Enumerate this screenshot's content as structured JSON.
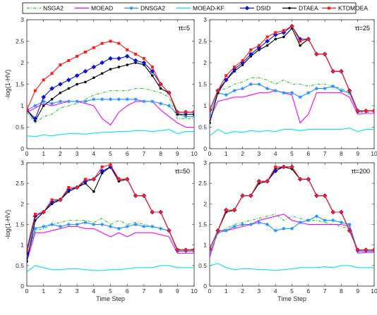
{
  "legend": [
    {
      "name": "NSGA2",
      "color": "#22cc22",
      "dash": "4,2,1,2",
      "marker": "none"
    },
    {
      "name": "MOEAD",
      "color": "#ff00ff",
      "dash": "",
      "marker": "none"
    },
    {
      "name": "DNSGA2",
      "color": "#1e90ff",
      "dash": "",
      "marker": "star"
    },
    {
      "name": "MOEAD-KF",
      "color": "#00e5ee",
      "dash": "",
      "marker": "none"
    },
    {
      "name": "DSID",
      "color": "#0a14d8",
      "dash": "",
      "marker": "diamond"
    },
    {
      "name": "DTAEA",
      "color": "#000000",
      "dash": "",
      "marker": "dot"
    },
    {
      "name": "KTDMOEA",
      "color": "#ff1a1a",
      "dash": "",
      "marker": "square"
    }
  ],
  "chart_data": [
    {
      "type": "line",
      "annotation": "τt=5",
      "xlabel": "",
      "ylabel": "-log(1-HV)",
      "xlim": [
        0,
        10
      ],
      "ylim": [
        0,
        3
      ],
      "xticks": [
        "0",
        "1",
        "2",
        "3",
        "4",
        "5",
        "6",
        "7",
        "8",
        "9",
        "10"
      ],
      "yticks": [
        "0",
        "0.5",
        "1",
        "1.5",
        "2",
        "2.5",
        "3"
      ],
      "x": [
        0,
        0.5,
        1,
        1.5,
        2,
        2.5,
        3,
        3.5,
        4,
        4.5,
        5,
        5.5,
        6,
        6.5,
        7,
        7.5,
        8,
        8.5,
        9,
        9.5,
        10
      ],
      "series": [
        {
          "name": "NSGA2",
          "values": [
            0.85,
            0.6,
            0.75,
            0.8,
            0.95,
            1.0,
            1.05,
            1.15,
            1.25,
            1.3,
            1.35,
            1.35,
            1.35,
            1.4,
            1.4,
            1.35,
            1.3,
            1.2,
            0.7,
            0.7,
            0.7
          ]
        },
        {
          "name": "MOEAD",
          "values": [
            0.85,
            0.95,
            1.05,
            1.0,
            1.05,
            1.1,
            1.1,
            1.05,
            1.0,
            0.7,
            0.55,
            0.85,
            1.0,
            1.1,
            1.1,
            1.1,
            0.9,
            0.75,
            0.6,
            0.5,
            0.5
          ]
        },
        {
          "name": "DNSGA2",
          "values": [
            0.9,
            1.0,
            1.1,
            1.05,
            1.1,
            1.1,
            1.1,
            1.1,
            1.15,
            1.15,
            1.15,
            1.15,
            1.15,
            1.15,
            1.1,
            1.1,
            1.05,
            1.0,
            0.8,
            0.75,
            0.75
          ]
        },
        {
          "name": "MOEAD-KF",
          "values": [
            0.3,
            0.28,
            0.32,
            0.3,
            0.33,
            0.35,
            0.35,
            0.34,
            0.36,
            0.38,
            0.38,
            0.4,
            0.4,
            0.42,
            0.42,
            0.4,
            0.42,
            0.45,
            0.35,
            0.4,
            0.4
          ]
        },
        {
          "name": "DSID",
          "values": [
            0.9,
            0.7,
            1.2,
            1.4,
            1.5,
            1.6,
            1.7,
            1.8,
            1.9,
            2.0,
            2.1,
            2.1,
            2.15,
            2.05,
            2.0,
            1.8,
            1.5,
            1.3,
            0.85,
            0.85,
            0.85
          ]
        },
        {
          "name": "DTAEA",
          "values": [
            0.9,
            0.65,
            1.0,
            1.15,
            1.3,
            1.4,
            1.5,
            1.55,
            1.65,
            1.75,
            1.85,
            1.9,
            1.95,
            2.0,
            1.95,
            1.7,
            1.4,
            1.3,
            0.8,
            0.8,
            0.8
          ]
        },
        {
          "name": "KTDMOEA",
          "values": [
            0.9,
            1.35,
            1.6,
            1.75,
            1.95,
            2.05,
            2.15,
            2.25,
            2.35,
            2.45,
            2.5,
            2.45,
            2.3,
            2.2,
            2.1,
            1.9,
            1.5,
            1.3,
            0.85,
            0.85,
            0.85
          ]
        }
      ]
    },
    {
      "type": "line",
      "annotation": "τt=25",
      "xlabel": "",
      "ylabel": "",
      "xlim": [
        0,
        10
      ],
      "ylim": [
        0,
        3
      ],
      "xticks": [
        "0",
        "1",
        "2",
        "3",
        "4",
        "5",
        "6",
        "7",
        "8",
        "9",
        "10"
      ],
      "yticks": [
        "0",
        "0.5",
        "1",
        "1.5",
        "2",
        "2.5",
        "3"
      ],
      "x": [
        0,
        0.5,
        1,
        1.5,
        2,
        2.5,
        3,
        3.5,
        4,
        4.5,
        5,
        5.5,
        6,
        6.5,
        7,
        7.5,
        8,
        8.5,
        9,
        9.5,
        10
      ],
      "series": [
        {
          "name": "NSGA2",
          "values": [
            0.75,
            1.35,
            1.4,
            1.5,
            1.55,
            1.65,
            1.65,
            1.6,
            1.5,
            1.6,
            1.5,
            1.5,
            1.45,
            1.5,
            1.5,
            1.45,
            1.4,
            1.3,
            0.85,
            0.85,
            0.85
          ]
        },
        {
          "name": "MOEAD",
          "values": [
            0.7,
            1.1,
            1.15,
            1.2,
            1.2,
            1.25,
            1.3,
            1.3,
            1.35,
            1.3,
            1.25,
            0.6,
            0.8,
            1.3,
            1.3,
            1.3,
            1.3,
            1.2,
            0.8,
            0.82,
            0.82
          ]
        },
        {
          "name": "DNSGA2",
          "values": [
            0.8,
            1.3,
            1.25,
            1.35,
            1.4,
            1.5,
            1.5,
            1.4,
            1.35,
            1.3,
            1.3,
            1.2,
            1.3,
            1.4,
            1.4,
            1.45,
            1.35,
            1.3,
            0.85,
            0.88,
            0.88
          ]
        },
        {
          "name": "MOEAD-KF",
          "values": [
            0.3,
            0.45,
            0.35,
            0.4,
            0.38,
            0.42,
            0.4,
            0.42,
            0.4,
            0.45,
            0.45,
            0.42,
            0.45,
            0.45,
            0.45,
            0.45,
            0.45,
            0.48,
            0.4,
            0.45,
            0.45
          ]
        },
        {
          "name": "DSID",
          "values": [
            0.9,
            1.35,
            1.6,
            1.85,
            2.0,
            2.2,
            2.35,
            2.5,
            2.65,
            2.7,
            2.85,
            2.55,
            2.55,
            2.2,
            2.2,
            1.8,
            1.8,
            1.35,
            0.88,
            0.88,
            0.88
          ]
        },
        {
          "name": "DTAEA",
          "values": [
            0.6,
            1.3,
            1.6,
            1.8,
            1.95,
            2.15,
            2.3,
            2.4,
            2.55,
            2.6,
            2.8,
            2.4,
            2.55,
            2.2,
            2.2,
            1.8,
            1.8,
            1.35,
            0.88,
            0.88,
            0.88
          ]
        },
        {
          "name": "KTDMOEA",
          "values": [
            0.9,
            1.35,
            1.7,
            1.9,
            2.05,
            2.3,
            2.4,
            2.6,
            2.7,
            2.75,
            2.85,
            2.5,
            2.55,
            2.2,
            2.2,
            1.8,
            1.8,
            1.35,
            0.88,
            0.88,
            0.88
          ]
        }
      ]
    },
    {
      "type": "line",
      "annotation": "τt=50",
      "xlabel": "Time Step",
      "ylabel": "-log(1-HV)",
      "xlim": [
        0,
        10
      ],
      "ylim": [
        0,
        3
      ],
      "xticks": [
        "0",
        "1",
        "2",
        "3",
        "4",
        "5",
        "6",
        "7",
        "8",
        "9",
        "10"
      ],
      "yticks": [
        "0",
        "0.5",
        "1",
        "1.5",
        "2",
        "2.5",
        "3"
      ],
      "x": [
        0,
        0.5,
        1,
        1.5,
        2,
        2.5,
        3,
        3.5,
        4,
        4.5,
        5,
        5.5,
        6,
        6.5,
        7,
        7.5,
        8,
        8.5,
        9,
        9.5,
        10
      ],
      "series": [
        {
          "name": "NSGA2",
          "values": [
            0.7,
            1.35,
            1.4,
            1.5,
            1.55,
            1.6,
            1.6,
            1.6,
            1.55,
            1.65,
            1.5,
            1.6,
            1.5,
            1.55,
            1.5,
            1.45,
            1.4,
            1.35,
            0.9,
            0.9,
            0.9
          ]
        },
        {
          "name": "MOEAD",
          "values": [
            0.6,
            1.3,
            1.3,
            1.35,
            1.4,
            1.45,
            1.45,
            1.4,
            1.4,
            1.3,
            1.2,
            1.3,
            1.2,
            1.3,
            1.3,
            1.3,
            1.25,
            1.2,
            0.8,
            0.8,
            0.8
          ]
        },
        {
          "name": "DNSGA2",
          "values": [
            0.7,
            1.4,
            1.45,
            1.5,
            1.45,
            1.5,
            1.5,
            1.55,
            1.5,
            1.5,
            1.45,
            1.4,
            1.45,
            1.5,
            1.45,
            1.45,
            1.4,
            1.35,
            0.85,
            0.85,
            0.85
          ]
        },
        {
          "name": "MOEAD-KF",
          "values": [
            0.35,
            0.5,
            0.45,
            0.4,
            0.4,
            0.42,
            0.42,
            0.4,
            0.38,
            0.38,
            0.4,
            0.4,
            0.42,
            0.45,
            0.45,
            0.45,
            0.5,
            0.5,
            0.45,
            0.45,
            0.45
          ]
        },
        {
          "name": "DSID",
          "values": [
            0.8,
            1.7,
            1.8,
            2.05,
            2.1,
            2.35,
            2.4,
            2.55,
            2.6,
            2.8,
            2.9,
            2.6,
            2.6,
            2.2,
            2.2,
            1.8,
            1.8,
            1.35,
            0.88,
            0.88,
            0.88
          ]
        },
        {
          "name": "DTAEA",
          "values": [
            0.6,
            1.6,
            1.8,
            2.0,
            2.1,
            2.3,
            2.4,
            2.5,
            2.3,
            2.75,
            2.9,
            2.55,
            2.6,
            2.2,
            2.2,
            1.8,
            1.8,
            1.35,
            0.88,
            0.88,
            0.88
          ]
        },
        {
          "name": "KTDMOEA",
          "values": [
            0.9,
            1.75,
            1.8,
            2.1,
            2.1,
            2.4,
            2.4,
            2.6,
            2.6,
            2.9,
            2.95,
            2.6,
            2.6,
            2.2,
            2.2,
            1.8,
            1.8,
            1.35,
            0.88,
            0.88,
            0.88
          ]
        }
      ]
    },
    {
      "type": "line",
      "annotation": "τt=200",
      "xlabel": "Time Step",
      "ylabel": "",
      "xlim": [
        0,
        10
      ],
      "ylim": [
        0,
        3
      ],
      "xticks": [
        "0",
        "1",
        "2",
        "3",
        "4",
        "5",
        "6",
        "7",
        "8",
        "9",
        "10"
      ],
      "yticks": [
        "0",
        "0.5",
        "1",
        "1.5",
        "2",
        "2.5",
        "3"
      ],
      "x": [
        0,
        0.5,
        1,
        1.5,
        2,
        2.5,
        3,
        3.5,
        4,
        4.5,
        5,
        5.5,
        6,
        6.5,
        7,
        7.5,
        8,
        8.5,
        9,
        9.5,
        10
      ],
      "series": [
        {
          "name": "NSGA2",
          "values": [
            0.7,
            1.3,
            1.4,
            1.5,
            1.55,
            1.6,
            1.65,
            1.7,
            1.75,
            1.6,
            1.7,
            1.65,
            1.6,
            1.6,
            1.55,
            1.5,
            1.45,
            1.4,
            0.85,
            0.85,
            0.85
          ]
        },
        {
          "name": "MOEAD",
          "values": [
            0.7,
            1.35,
            1.35,
            1.4,
            1.45,
            1.5,
            1.6,
            1.65,
            1.7,
            1.75,
            1.6,
            1.55,
            1.5,
            1.5,
            1.5,
            1.5,
            1.5,
            1.45,
            0.8,
            0.82,
            0.82
          ]
        },
        {
          "name": "DNSGA2",
          "values": [
            0.8,
            1.3,
            1.35,
            1.45,
            1.5,
            1.5,
            1.55,
            1.5,
            1.35,
            1.4,
            1.4,
            1.55,
            1.6,
            1.7,
            1.6,
            1.6,
            1.55,
            1.5,
            0.85,
            0.85,
            0.85
          ]
        },
        {
          "name": "MOEAD-KF",
          "values": [
            0.5,
            0.55,
            0.45,
            0.4,
            0.42,
            0.42,
            0.4,
            0.4,
            0.38,
            0.4,
            0.42,
            0.45,
            0.45,
            0.45,
            0.47,
            0.45,
            0.5,
            0.5,
            0.45,
            0.45,
            0.45
          ]
        },
        {
          "name": "DSID",
          "values": [
            0.9,
            1.35,
            1.85,
            1.85,
            2.2,
            2.2,
            2.55,
            2.55,
            2.8,
            2.9,
            2.9,
            2.6,
            2.6,
            2.2,
            2.2,
            1.8,
            1.8,
            1.35,
            0.88,
            0.88,
            0.88
          ]
        },
        {
          "name": "DTAEA",
          "values": [
            0.9,
            1.35,
            1.8,
            1.85,
            2.2,
            2.2,
            2.5,
            2.55,
            2.85,
            2.9,
            2.85,
            2.6,
            2.6,
            2.2,
            2.2,
            1.8,
            1.8,
            1.35,
            0.88,
            0.88,
            0.88
          ]
        },
        {
          "name": "KTDMOEA",
          "values": [
            0.9,
            1.35,
            1.85,
            1.85,
            2.2,
            2.2,
            2.55,
            2.55,
            2.9,
            2.9,
            2.9,
            2.6,
            2.6,
            2.2,
            2.2,
            1.8,
            1.8,
            1.35,
            0.88,
            0.88,
            0.88
          ]
        }
      ]
    }
  ]
}
